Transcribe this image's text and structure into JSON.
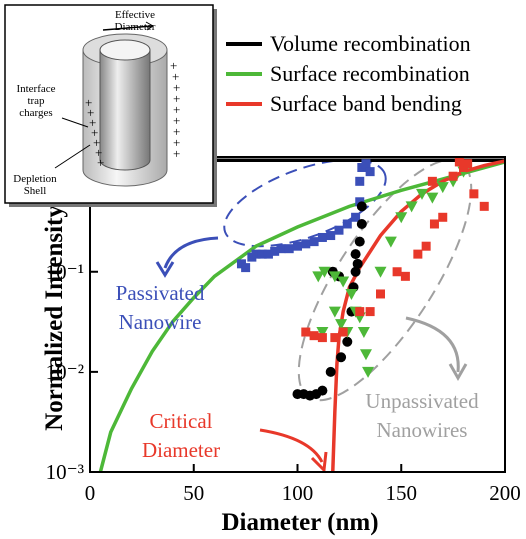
{
  "chart_data": {
    "type": "line",
    "y_scale": "log",
    "xlabel": "Diameter (nm)",
    "ylabel": "Normalized Intensity",
    "xlim": [
      0,
      200
    ],
    "ylim": [
      0.001,
      1.4
    ],
    "xticks": [
      0,
      50,
      100,
      150,
      200
    ],
    "yticks": [
      {
        "value": 0.001,
        "label": "10⁻³"
      },
      {
        "value": 0.01,
        "label": "10⁻²"
      },
      {
        "value": 0.1,
        "label": "10⁻¹"
      }
    ],
    "legend": "upper right",
    "series": [
      {
        "name": "Volume recombination",
        "color": "#000000",
        "x": [
          0,
          200
        ],
        "values": [
          1.3,
          1.3
        ]
      },
      {
        "name": "Surface recombination",
        "color": "#4db838",
        "x": [
          5,
          10,
          20,
          30,
          40,
          50,
          60,
          80,
          100,
          125,
          150,
          175,
          200
        ],
        "values": [
          0.001,
          0.0025,
          0.0068,
          0.016,
          0.032,
          0.055,
          0.09,
          0.18,
          0.28,
          0.45,
          0.65,
          0.9,
          1.25
        ]
      },
      {
        "name": "Surface band bending",
        "color": "#e8382a",
        "x": [
          117,
          118,
          119,
          120,
          122,
          125,
          130,
          140,
          150,
          160,
          170,
          180,
          190,
          200
        ],
        "values": [
          0.001,
          0.004,
          0.012,
          0.022,
          0.04,
          0.07,
          0.11,
          0.23,
          0.4,
          0.6,
          0.8,
          1.0,
          1.15,
          1.28
        ]
      },
      {
        "color": "#3b4fb8",
        "marker": "square",
        "x": [
          73,
          75,
          78,
          80,
          83,
          86,
          89,
          92,
          96,
          100,
          104,
          108,
          112,
          116,
          120,
          124,
          128,
          130,
          130,
          131,
          133,
          135
        ],
        "values": [
          0.12,
          0.11,
          0.14,
          0.15,
          0.15,
          0.15,
          0.16,
          0.17,
          0.17,
          0.18,
          0.19,
          0.2,
          0.22,
          0.23,
          0.26,
          0.3,
          0.35,
          0.5,
          0.8,
          1.1,
          1.2,
          1.0
        ]
      },
      {
        "color": "#000000",
        "marker": "circle",
        "x": [
          100,
          103,
          106,
          109,
          112,
          116,
          121,
          124,
          126,
          127,
          128,
          129,
          128,
          130,
          131,
          131,
          120,
          117
        ],
        "values": [
          0.006,
          0.006,
          0.0058,
          0.006,
          0.0065,
          0.01,
          0.014,
          0.02,
          0.04,
          0.07,
          0.1,
          0.12,
          0.15,
          0.2,
          0.3,
          0.45,
          0.09,
          0.1
        ]
      },
      {
        "color": "#4db838",
        "marker": "triangle",
        "x": [
          110,
          113,
          118,
          122,
          126,
          128,
          130,
          132,
          133,
          134,
          118,
          121,
          124,
          112,
          140,
          145,
          150,
          155,
          160,
          165,
          170,
          175,
          180
        ],
        "values": [
          0.09,
          0.1,
          0.09,
          0.08,
          0.06,
          0.04,
          0.035,
          0.025,
          0.015,
          0.01,
          0.04,
          0.03,
          0.025,
          0.025,
          0.1,
          0.2,
          0.35,
          0.45,
          0.6,
          0.55,
          0.7,
          0.8,
          1.0
        ]
      },
      {
        "color": "#e8382a",
        "marker": "square",
        "x": [
          104,
          108,
          112,
          118,
          122,
          130,
          135,
          140,
          148,
          152,
          158,
          162,
          166,
          170,
          165,
          175,
          180,
          182,
          185,
          190,
          178
        ],
        "values": [
          0.025,
          0.023,
          0.022,
          0.022,
          0.025,
          0.04,
          0.04,
          0.06,
          0.1,
          0.09,
          0.15,
          0.18,
          0.3,
          0.35,
          0.8,
          0.9,
          1.1,
          1.2,
          0.6,
          0.45,
          1.25
        ]
      }
    ],
    "annotations": [
      {
        "lines": [
          "Passivated",
          "Nanowire"
        ],
        "color": "#3b4fb8"
      },
      {
        "lines": [
          "Critical",
          "Diameter"
        ],
        "color": "#e8382a"
      },
      {
        "lines": [
          "Unpassivated",
          "Nanowires"
        ],
        "color": "#a0a0a0"
      }
    ],
    "inset_labels": {
      "effective_diameter": [
        "Effective",
        "Diameter"
      ],
      "trap_charges": [
        "Interface",
        "trap",
        "charges"
      ],
      "depletion_shell": [
        "Depletion",
        "Shell"
      ]
    }
  }
}
